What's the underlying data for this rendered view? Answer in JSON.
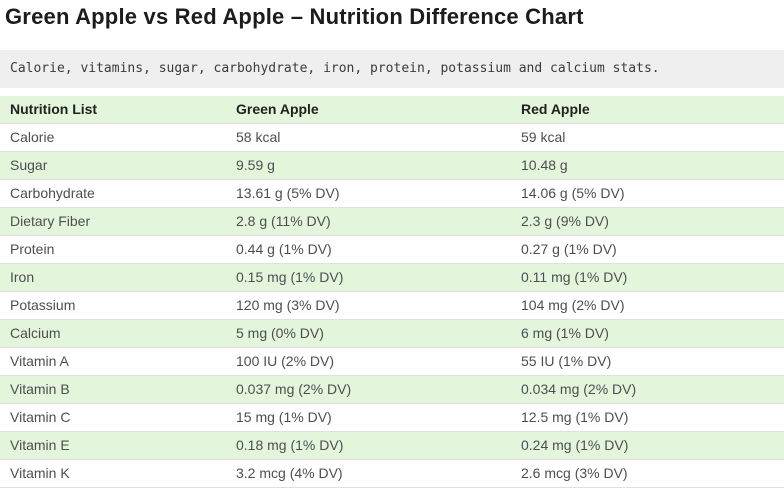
{
  "page": {
    "title": "Green Apple vs Red Apple – Nutrition Difference Chart",
    "subtitle": "Calorie, vitamins, sugar, carbohydrate, iron, protein, potassium and calcium stats."
  },
  "chart_data": {
    "type": "table",
    "title": "Green Apple vs Red Apple – Nutrition Difference Chart",
    "columns": [
      "Nutrition List",
      "Green Apple",
      "Red Apple"
    ],
    "rows": [
      [
        "Calorie",
        "58 kcal",
        "59 kcal"
      ],
      [
        "Sugar",
        "9.59 g",
        "10.48 g"
      ],
      [
        "Carbohydrate",
        "13.61 g (5% DV)",
        "14.06 g (5% DV)"
      ],
      [
        "Dietary Fiber",
        "2.8 g (11% DV)",
        "2.3 g (9% DV)"
      ],
      [
        "Protein",
        "0.44 g (1% DV)",
        "0.27 g (1% DV)"
      ],
      [
        "Iron",
        "0.15 mg (1% DV)",
        "0.11 mg (1% DV)"
      ],
      [
        "Potassium",
        "120 mg (3% DV)",
        "104 mg (2% DV)"
      ],
      [
        "Calcium",
        "5 mg (0% DV)",
        "6 mg (1% DV)"
      ],
      [
        "Vitamin A",
        "100 IU (2% DV)",
        "55 IU (1% DV)"
      ],
      [
        "Vitamin B",
        "0.037 mg (2% DV)",
        "0.034 mg (2% DV)"
      ],
      [
        "Vitamin C",
        "15 mg (1% DV)",
        "12.5 mg (1% DV)"
      ],
      [
        "Vitamin E",
        "0.18 mg (1% DV)",
        "0.24 mg (1% DV)"
      ],
      [
        "Vitamin K",
        "3.2 mcg (4% DV)",
        "2.6 mcg (3% DV)"
      ]
    ]
  },
  "colors": {
    "stripe_green": "#e3f6dc",
    "header_green": "#e3f6dc",
    "subtitle_bg": "#efefef",
    "row_border": "#e0e0e0",
    "title_text": "#1c1c1e",
    "header_text": "#212121",
    "cell_text": "#4e4e52",
    "subtitle_text": "#3b3b3b"
  }
}
